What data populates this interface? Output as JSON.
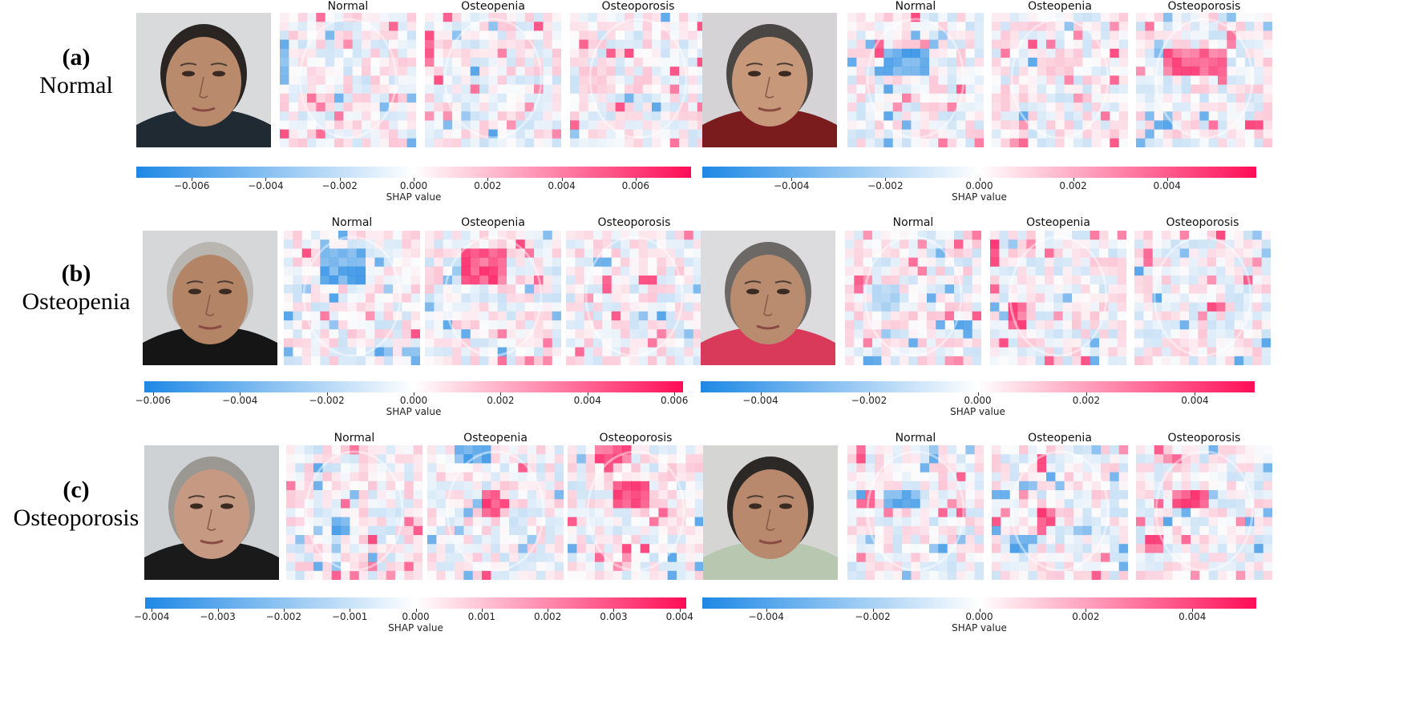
{
  "rows": [
    {
      "tag": "(a)",
      "name": "Normal",
      "panels": [
        {
          "titles": [
            "Normal",
            "Osteopenia",
            "Osteoporosis"
          ],
          "photo": {
            "skin": "#b98a6c",
            "hair": "#2a2522",
            "shirt": "#1f2a33",
            "bg": "#d8dadc"
          },
          "colorbar": {
            "ticks": [
              "−0.006",
              "−0.004",
              "−0.002",
              "0.000",
              "0.002",
              "0.004",
              "0.006"
            ],
            "min": -0.0075,
            "max": 0.0075,
            "label": "SHAP value"
          }
        },
        {
          "titles": [
            "Normal",
            "Osteopenia",
            "Osteoporosis"
          ],
          "photo": {
            "skin": "#c7987a",
            "hair": "#4a4644",
            "shirt": "#7a1c1e",
            "bg": "#d5d3d6"
          },
          "colorbar": {
            "ticks": [
              "−0.004",
              "−0.002",
              "0.000",
              "0.002",
              "0.004"
            ],
            "min": -0.0059,
            "max": 0.0059,
            "label": "SHAP value"
          }
        }
      ]
    },
    {
      "tag": "(b)",
      "name": "Osteopenia",
      "panels": [
        {
          "titles": [
            "Normal",
            "Osteopenia",
            "Osteoporosis"
          ],
          "photo": {
            "skin": "#b48466",
            "hair": "#b9b5b1",
            "shirt": "#151515",
            "bg": "#d6d7d9"
          },
          "colorbar": {
            "ticks": [
              "−0.006",
              "−0.004",
              "−0.002",
              "0.000",
              "0.002",
              "0.004",
              "0.006"
            ],
            "min": -0.0062,
            "max": 0.0062,
            "label": "SHAP value"
          }
        },
        {
          "titles": [
            "Normal",
            "Osteopenia",
            "Osteoporosis"
          ],
          "photo": {
            "skin": "#b98c70",
            "hair": "#6b6865",
            "shirt": "#d93a5a",
            "bg": "#dcdcde"
          },
          "colorbar": {
            "ticks": [
              "−0.004",
              "−0.002",
              "0.000",
              "0.002",
              "0.004"
            ],
            "min": -0.0051,
            "max": 0.0051,
            "label": "SHAP value"
          }
        }
      ]
    },
    {
      "tag": "(c)",
      "name": "Osteoporosis",
      "panels": [
        {
          "titles": [
            "Normal",
            "Osteopenia",
            "Osteoporosis"
          ],
          "photo": {
            "skin": "#c69a82",
            "hair": "#9b9894",
            "shirt": "#1a1a1a",
            "bg": "#cfd2d5"
          },
          "colorbar": {
            "ticks": [
              "−0.004",
              "−0.003",
              "−0.002",
              "−0.001",
              "0.000",
              "0.001",
              "0.002",
              "0.003",
              "0.004"
            ],
            "min": -0.0041,
            "max": 0.0041,
            "label": "SHAP value"
          }
        },
        {
          "titles": [
            "Normal",
            "Osteopenia",
            "Osteoporosis"
          ],
          "photo": {
            "skin": "#b9896d",
            "hair": "#2c2826",
            "shirt": "#b7c7b0",
            "bg": "#d5d6d4"
          },
          "colorbar": {
            "ticks": [
              "−0.004",
              "−0.002",
              "0.000",
              "0.002",
              "0.004"
            ],
            "min": -0.0052,
            "max": 0.0052,
            "label": "SHAP value"
          }
        }
      ]
    }
  ],
  "colors": {
    "negative": "#1e88e5",
    "neutral": "#ffffff",
    "positive": "#ff0d57"
  }
}
